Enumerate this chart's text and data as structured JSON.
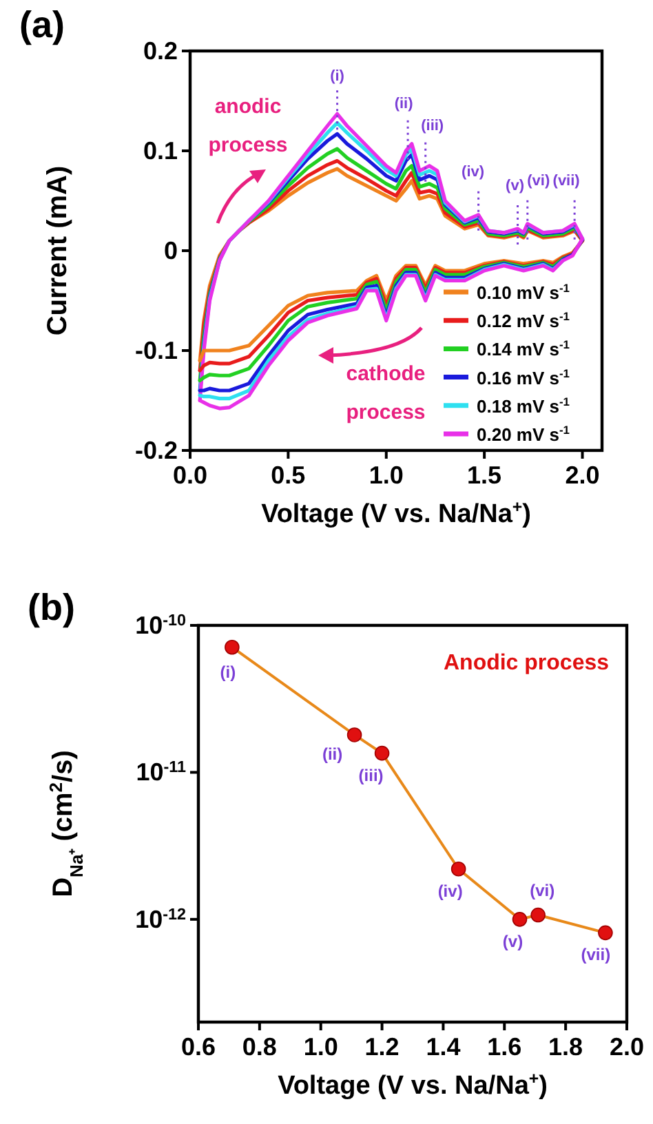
{
  "chart_data": [
    {
      "type": "line",
      "title": "(a)",
      "xlabel": "Voltage (V vs. Na/Na$^{+}$)",
      "ylabel": "Current (mA)",
      "xlim": [
        0,
        2.1
      ],
      "ylim": [
        -0.2,
        0.2
      ],
      "xticks": [
        {
          "value": 0,
          "label": "0.0"
        },
        0.5,
        {
          "value": 1,
          "label": "1.0"
        },
        1.5,
        {
          "value": 2,
          "label": "2.0"
        }
      ],
      "yticks": [
        -0.2,
        -0.1,
        0,
        0.1,
        0.2
      ],
      "legend": "bottom right",
      "line_style": "solid",
      "x": [
        0.05,
        0.07,
        0.1,
        0.15,
        0.2,
        0.25,
        0.3,
        0.4,
        0.5,
        0.6,
        0.7,
        0.75,
        0.8,
        0.9,
        1.0,
        1.05,
        1.1,
        1.13,
        1.17,
        1.22,
        1.26,
        1.3,
        1.4,
        1.47,
        1.52,
        1.6,
        1.67,
        1.7,
        1.72,
        1.8,
        1.9,
        1.96,
        2.0
      ],
      "series": [
        {
          "name": "0.10 mV s$^{-1}$",
          "color": "#f0821e",
          "values": [
            -0.11,
            -0.07,
            -0.035,
            -0.005,
            0.01,
            0.02,
            0.028,
            0.04,
            0.055,
            0.068,
            0.078,
            0.082,
            0.075,
            0.065,
            0.055,
            0.05,
            0.062,
            0.07,
            0.052,
            0.055,
            0.052,
            0.035,
            0.022,
            0.026,
            0.015,
            0.013,
            0.016,
            0.013,
            0.02,
            0.013,
            0.015,
            0.02,
            0.01
          ]
        },
        {
          "name": "0.12 mV s$^{-1}$",
          "color": "#e81c1c",
          "values": [
            -0.12,
            -0.075,
            -0.04,
            -0.007,
            0.01,
            0.02,
            0.028,
            0.042,
            0.06,
            0.075,
            0.086,
            0.09,
            0.083,
            0.072,
            0.06,
            0.055,
            0.07,
            0.078,
            0.058,
            0.06,
            0.057,
            0.038,
            0.024,
            0.028,
            0.016,
            0.014,
            0.017,
            0.014,
            0.021,
            0.014,
            0.016,
            0.021,
            0.01
          ]
        },
        {
          "name": "0.14 mV s$^{-1}$",
          "color": "#22d022",
          "values": [
            -0.13,
            -0.085,
            -0.043,
            -0.008,
            0.01,
            0.02,
            0.029,
            0.045,
            0.065,
            0.083,
            0.097,
            0.102,
            0.093,
            0.08,
            0.067,
            0.062,
            0.08,
            0.085,
            0.064,
            0.067,
            0.063,
            0.042,
            0.026,
            0.03,
            0.017,
            0.015,
            0.018,
            0.015,
            0.023,
            0.015,
            0.017,
            0.023,
            0.011
          ]
        },
        {
          "name": "0.16 mV s$^{-1}$",
          "color": "#1a1adc",
          "values": [
            -0.14,
            -0.092,
            -0.046,
            -0.009,
            0.01,
            0.02,
            0.03,
            0.048,
            0.07,
            0.092,
            0.11,
            0.117,
            0.107,
            0.092,
            0.075,
            0.07,
            0.09,
            0.096,
            0.071,
            0.075,
            0.071,
            0.046,
            0.028,
            0.033,
            0.019,
            0.017,
            0.02,
            0.017,
            0.025,
            0.017,
            0.019,
            0.025,
            0.011
          ]
        },
        {
          "name": "0.18 mV s$^{-1}$",
          "color": "#2ee0f0",
          "values": [
            -0.145,
            -0.096,
            -0.048,
            -0.01,
            0.01,
            0.02,
            0.03,
            0.049,
            0.073,
            0.096,
            0.118,
            0.128,
            0.118,
            0.1,
            0.081,
            0.075,
            0.096,
            0.102,
            0.076,
            0.08,
            0.076,
            0.048,
            0.029,
            0.035,
            0.02,
            0.018,
            0.021,
            0.018,
            0.026,
            0.018,
            0.02,
            0.026,
            0.012
          ]
        },
        {
          "name": "0.20 mV s$^{-1}$",
          "color": "#e830e8",
          "values": [
            -0.15,
            -0.1,
            -0.05,
            -0.01,
            0.01,
            0.02,
            0.03,
            0.05,
            0.075,
            0.1,
            0.125,
            0.137,
            0.125,
            0.105,
            0.085,
            0.078,
            0.1,
            0.107,
            0.08,
            0.085,
            0.08,
            0.05,
            0.03,
            0.036,
            0.02,
            0.018,
            0.022,
            0.018,
            0.027,
            0.018,
            0.02,
            0.027,
            0.012
          ]
        },
        {
          "color": "#f0821e",
          "x": [
            0.05,
            0.07,
            0.1,
            0.15,
            0.2,
            0.3,
            0.4,
            0.5,
            0.6,
            0.7,
            0.85,
            0.9,
            0.95,
            1.0,
            1.05,
            1.1,
            1.15,
            1.2,
            1.25,
            1.3,
            1.4,
            1.5,
            1.6,
            1.7,
            1.8,
            1.85,
            1.9,
            1.95,
            2.0
          ],
          "values": [
            -0.11,
            -0.1,
            -0.1,
            -0.1,
            -0.1,
            -0.095,
            -0.075,
            -0.055,
            -0.045,
            -0.042,
            -0.04,
            -0.03,
            -0.025,
            -0.05,
            -0.025,
            -0.015,
            -0.015,
            -0.035,
            -0.015,
            -0.02,
            -0.02,
            -0.013,
            -0.01,
            -0.013,
            -0.01,
            -0.012,
            -0.006,
            -0.002,
            0.01
          ]
        },
        {
          "color": "#e81c1c",
          "x": [
            0.05,
            0.07,
            0.1,
            0.15,
            0.2,
            0.3,
            0.4,
            0.5,
            0.6,
            0.7,
            0.85,
            0.9,
            0.95,
            1.0,
            1.05,
            1.1,
            1.15,
            1.2,
            1.25,
            1.3,
            1.4,
            1.5,
            1.6,
            1.7,
            1.8,
            1.85,
            1.9,
            1.95,
            2.0
          ],
          "values": [
            -0.12,
            -0.115,
            -0.112,
            -0.113,
            -0.113,
            -0.106,
            -0.085,
            -0.062,
            -0.05,
            -0.047,
            -0.044,
            -0.032,
            -0.028,
            -0.055,
            -0.028,
            -0.017,
            -0.017,
            -0.038,
            -0.017,
            -0.022,
            -0.022,
            -0.015,
            -0.011,
            -0.015,
            -0.011,
            -0.014,
            -0.007,
            -0.003,
            0.01
          ]
        },
        {
          "color": "#22d022",
          "x": [
            0.05,
            0.07,
            0.1,
            0.15,
            0.2,
            0.3,
            0.4,
            0.5,
            0.6,
            0.7,
            0.85,
            0.9,
            0.95,
            1.0,
            1.05,
            1.1,
            1.15,
            1.2,
            1.25,
            1.3,
            1.4,
            1.5,
            1.6,
            1.7,
            1.8,
            1.85,
            1.9,
            1.95,
            2.0
          ],
          "values": [
            -0.13,
            -0.127,
            -0.124,
            -0.125,
            -0.125,
            -0.118,
            -0.095,
            -0.07,
            -0.056,
            -0.052,
            -0.048,
            -0.034,
            -0.031,
            -0.06,
            -0.031,
            -0.019,
            -0.019,
            -0.042,
            -0.019,
            -0.024,
            -0.024,
            -0.016,
            -0.012,
            -0.016,
            -0.012,
            -0.016,
            -0.008,
            -0.004,
            0.011
          ]
        },
        {
          "color": "#1a1adc",
          "x": [
            0.05,
            0.07,
            0.1,
            0.15,
            0.2,
            0.3,
            0.4,
            0.5,
            0.6,
            0.7,
            0.85,
            0.9,
            0.95,
            1.0,
            1.05,
            1.1,
            1.15,
            1.2,
            1.25,
            1.3,
            1.4,
            1.5,
            1.6,
            1.7,
            1.8,
            1.85,
            1.9,
            1.95,
            2.0
          ],
          "values": [
            -0.14,
            -0.14,
            -0.138,
            -0.14,
            -0.14,
            -0.133,
            -0.105,
            -0.08,
            -0.064,
            -0.059,
            -0.053,
            -0.037,
            -0.035,
            -0.065,
            -0.035,
            -0.022,
            -0.022,
            -0.046,
            -0.022,
            -0.027,
            -0.027,
            -0.018,
            -0.013,
            -0.018,
            -0.013,
            -0.018,
            -0.009,
            -0.004,
            0.011
          ]
        },
        {
          "color": "#2ee0f0",
          "x": [
            0.05,
            0.07,
            0.1,
            0.15,
            0.2,
            0.3,
            0.4,
            0.5,
            0.6,
            0.7,
            0.85,
            0.9,
            0.95,
            1.0,
            1.05,
            1.1,
            1.15,
            1.2,
            1.25,
            1.3,
            1.4,
            1.5,
            1.6,
            1.7,
            1.8,
            1.85,
            1.9
          ],
          "values": [
            -0.145,
            -0.146,
            -0.146,
            -0.148,
            -0.148,
            -0.14,
            -0.11,
            -0.086,
            -0.069,
            -0.063,
            -0.056,
            -0.039,
            -0.038,
            -0.068,
            -0.038,
            -0.024,
            -0.024,
            -0.048,
            -0.024,
            -0.029,
            -0.029,
            -0.019,
            -0.014,
            -0.019,
            -0.014,
            -0.019,
            -0.01
          ]
        },
        {
          "color": "#e830e8",
          "x": [
            0.05,
            0.07,
            0.1,
            0.15,
            0.2,
            0.3,
            0.4,
            0.5,
            0.6,
            0.7,
            0.85,
            0.9,
            0.95,
            1.0,
            1.05,
            1.1,
            1.15,
            1.2,
            1.25,
            1.3,
            1.4,
            1.5,
            1.6,
            1.7,
            1.8,
            1.85,
            1.9,
            1.95,
            2.0
          ],
          "values": [
            -0.15,
            -0.152,
            -0.155,
            -0.158,
            -0.157,
            -0.145,
            -0.115,
            -0.09,
            -0.072,
            -0.065,
            -0.058,
            -0.04,
            -0.04,
            -0.07,
            -0.04,
            -0.025,
            -0.025,
            -0.05,
            -0.025,
            -0.03,
            -0.03,
            -0.02,
            -0.015,
            -0.02,
            -0.015,
            -0.02,
            -0.01,
            -0.005,
            0.012
          ]
        }
      ],
      "annotations": [
        "anodic process",
        "cathode process",
        {
          "text": "(i)",
          "x": 0.75,
          "y": 0.137
        },
        {
          "text": "(ii)",
          "x": 1.11,
          "y": 0.107
        },
        {
          "text": "(iii)",
          "x": 1.2,
          "y": 0.085
        },
        {
          "text": "(iv)",
          "x": 1.47,
          "y": 0.036
        },
        {
          "text": "(v)",
          "x": 1.67,
          "y": 0.022
        },
        {
          "text": "(vi)",
          "x": 1.72,
          "y": 0.027
        },
        {
          "text": "(vii)",
          "x": 1.96,
          "y": 0.027
        }
      ]
    },
    {
      "type": "line",
      "title": "(b)",
      "xlabel": "Voltage (V vs. Na/Na$^{+}$)",
      "ylabel": "D$_{Na⁺}$ (cm$^{2}$/s)",
      "log": "y",
      "xlim": [
        0.6,
        2.0
      ],
      "ylim": [
        2e-13,
        1e-10
      ],
      "xticks": [
        0.6,
        0.8,
        {
          "value": 1,
          "label": "1.0"
        },
        1.2,
        1.4,
        1.6,
        1.8,
        {
          "value": 2,
          "label": "2.0"
        }
      ],
      "yticks": [
        {
          "value": 1e-12,
          "label": "10$^{-12}$"
        },
        {
          "value": 1e-11,
          "label": "10$^{-11}$"
        },
        {
          "value": 1e-10,
          "label": "10$^{-10}$"
        }
      ],
      "x": [
        0.71,
        1.11,
        1.2,
        1.45,
        1.65,
        1.71,
        1.93
      ],
      "series": [
        {
          "color": "#e8891a",
          "values": [
            7.1e-11,
            1.8e-11,
            1.35e-11,
            2.2e-12,
            1e-12,
            1.07e-12,
            8.1e-13
          ]
        },
        {
          "type": "scatter",
          "color": "#e01010",
          "marker": "circle",
          "values": [
            7.1e-11,
            1.8e-11,
            1.35e-11,
            2.2e-12,
            1e-12,
            1.07e-12,
            8.1e-13
          ]
        }
      ],
      "annotations": [
        "Anodic process",
        {
          "text": "(i)",
          "x": 0.71,
          "y": 7.1e-11
        },
        {
          "text": "(ii)",
          "x": 1.11,
          "y": 1.8e-11
        },
        {
          "text": "(iii)",
          "x": 1.2,
          "y": 1.35e-11
        },
        {
          "text": "(iv)",
          "x": 1.45,
          "y": 2.2e-12
        },
        {
          "text": "(v)",
          "x": 1.65,
          "y": 1e-12
        },
        {
          "text": "(vi)",
          "x": 1.71,
          "y": 1.07e-12
        },
        {
          "text": "(vii)",
          "x": 1.93,
          "y": 8.1e-13
        }
      ]
    }
  ]
}
